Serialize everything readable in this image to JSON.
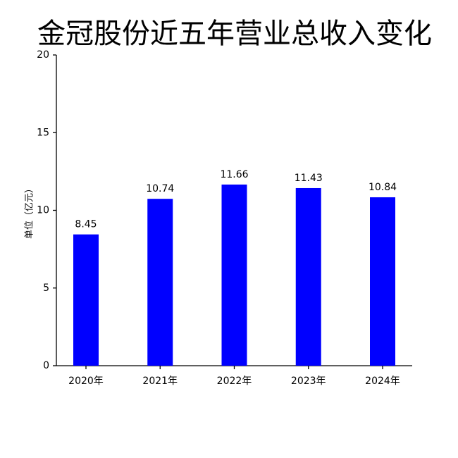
{
  "chart_data": {
    "type": "bar",
    "title": "金冠股份近五年营业总收入变化",
    "y_label": "单位（亿元）",
    "categories": [
      "2020年",
      "2021年",
      "2022年",
      "2023年",
      "2024年"
    ],
    "values": [
      8.45,
      10.74,
      11.66,
      11.43,
      10.84
    ],
    "color": "#0000ff",
    "ylim": [
      0,
      20
    ],
    "yticks": [
      0,
      5,
      10,
      15,
      20
    ],
    "grid": false
  }
}
